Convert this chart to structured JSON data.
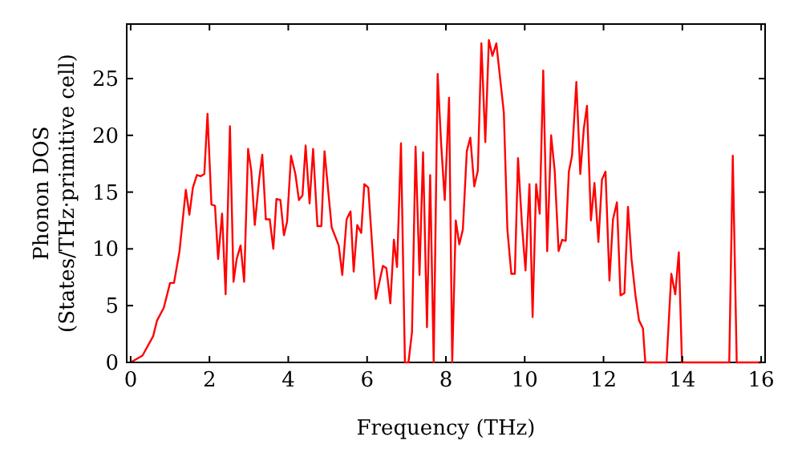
{
  "chart_data": {
    "type": "line",
    "xlabel": "Frequency (THz)",
    "ylabel": "Phonon DOS\n(States/THz·primitive cell)",
    "xlim": [
      -0.1,
      16.1
    ],
    "ylim": [
      0,
      29.8
    ],
    "xticks": [
      0,
      2,
      4,
      6,
      8,
      10,
      12,
      14,
      16
    ],
    "yticks": [
      0,
      5,
      10,
      15,
      20,
      25
    ],
    "grid": false,
    "marker": "none",
    "line_style": "solid",
    "series": [
      {
        "color": "#ff0000",
        "x": [
          0,
          0.3,
          0.57,
          0.67,
          0.84,
          1.0,
          1.1,
          1.24,
          1.4,
          1.49,
          1.58,
          1.68,
          1.78,
          1.87,
          1.95,
          2.05,
          2.14,
          2.22,
          2.32,
          2.41,
          2.52,
          2.61,
          2.69,
          2.79,
          2.88,
          2.98,
          3.06,
          3.15,
          3.26,
          3.34,
          3.43,
          3.53,
          3.62,
          3.7,
          3.8,
          3.89,
          3.97,
          4.07,
          4.18,
          4.27,
          4.36,
          4.44,
          4.54,
          4.63,
          4.74,
          4.84,
          4.92,
          5.1,
          5.28,
          5.37,
          5.48,
          5.58,
          5.66,
          5.75,
          5.85,
          5.93,
          6.03,
          6.22,
          6.4,
          6.49,
          6.59,
          6.68,
          6.76,
          6.86,
          6.96,
          7.05,
          7.14,
          7.23,
          7.33,
          7.42,
          7.52,
          7.6,
          7.69,
          7.79,
          7.88,
          7.97,
          8.08,
          8.16,
          8.25,
          8.34,
          8.43,
          8.53,
          8.62,
          8.72,
          8.81,
          8.9,
          9.0,
          9.09,
          9.18,
          9.28,
          9.47,
          9.56,
          9.66,
          9.75,
          9.83,
          9.93,
          10.02,
          10.12,
          10.2,
          10.29,
          10.38,
          10.47,
          10.57,
          10.67,
          10.76,
          10.86,
          10.95,
          11.04,
          11.12,
          11.2,
          11.31,
          11.41,
          11.5,
          11.58,
          11.68,
          11.77,
          11.87,
          11.96,
          12.05,
          12.15,
          12.24,
          12.34,
          12.43,
          12.53,
          12.62,
          12.71,
          12.81,
          12.9,
          13.0,
          13.06,
          13.6,
          13.72,
          13.82,
          13.91,
          13.99,
          15.19,
          15.28,
          15.38,
          16.0
        ],
        "values": [
          0,
          0.6,
          2.3,
          3.7,
          4.8,
          7.0,
          7.0,
          9.8,
          15.2,
          13.0,
          15.4,
          16.5,
          16.4,
          16.6,
          21.9,
          13.9,
          13.8,
          9.1,
          13.1,
          6.0,
          20.8,
          7.1,
          9.1,
          10.3,
          7.1,
          18.8,
          16.9,
          12.1,
          16.1,
          18.3,
          12.6,
          12.6,
          10.0,
          14.4,
          14.3,
          11.2,
          12.4,
          18.2,
          16.6,
          14.3,
          14.7,
          19.1,
          14.0,
          18.8,
          12.0,
          12.0,
          18.6,
          11.9,
          10.3,
          7.7,
          12.6,
          13.3,
          8.0,
          12.1,
          11.4,
          15.7,
          15.4,
          5.6,
          8.5,
          8.3,
          5.2,
          10.8,
          8.4,
          19.3,
          0,
          0,
          2.7,
          19.0,
          7.7,
          18.5,
          3.1,
          16.5,
          0,
          25.4,
          19.2,
          14.3,
          23.3,
          0,
          12.5,
          10.4,
          11.7,
          18.6,
          19.8,
          15.5,
          16.9,
          28.1,
          19.4,
          28.4,
          27.0,
          28.1,
          22.0,
          11.7,
          7.8,
          7.8,
          18.0,
          12.1,
          8.1,
          15.7,
          4.0,
          15.7,
          13.1,
          25.7,
          9.8,
          20.0,
          16.9,
          9.8,
          10.8,
          10.7,
          16.8,
          18.2,
          24.7,
          16.6,
          20.6,
          22.6,
          12.5,
          15.8,
          10.6,
          16.1,
          16.8,
          7.2,
          12.6,
          14.1,
          5.9,
          6.1,
          13.7,
          9.1,
          5.9,
          3.7,
          3.0,
          0,
          0,
          7.8,
          6.0,
          9.7,
          0,
          0,
          18.2,
          0,
          0
        ]
      }
    ]
  }
}
